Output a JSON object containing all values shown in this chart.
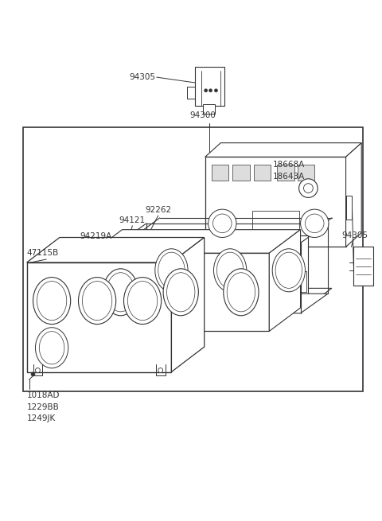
{
  "bg_color": "#ffffff",
  "lc": "#333333",
  "lw_main": 0.9,
  "lw_thin": 0.5,
  "fig_width": 4.8,
  "fig_height": 6.55,
  "dpi": 100,
  "labels": {
    "94305_top": "94305",
    "94300": "94300",
    "18668A": "18668A",
    "18643A": "18643A",
    "92262": "92262",
    "94121": "94121",
    "94219A": "94219A",
    "47115B": "47115B",
    "94305_right": "94305",
    "1018AD": "1018AD",
    "1229BB": "1229BB",
    "1249JK": "1249JK"
  }
}
